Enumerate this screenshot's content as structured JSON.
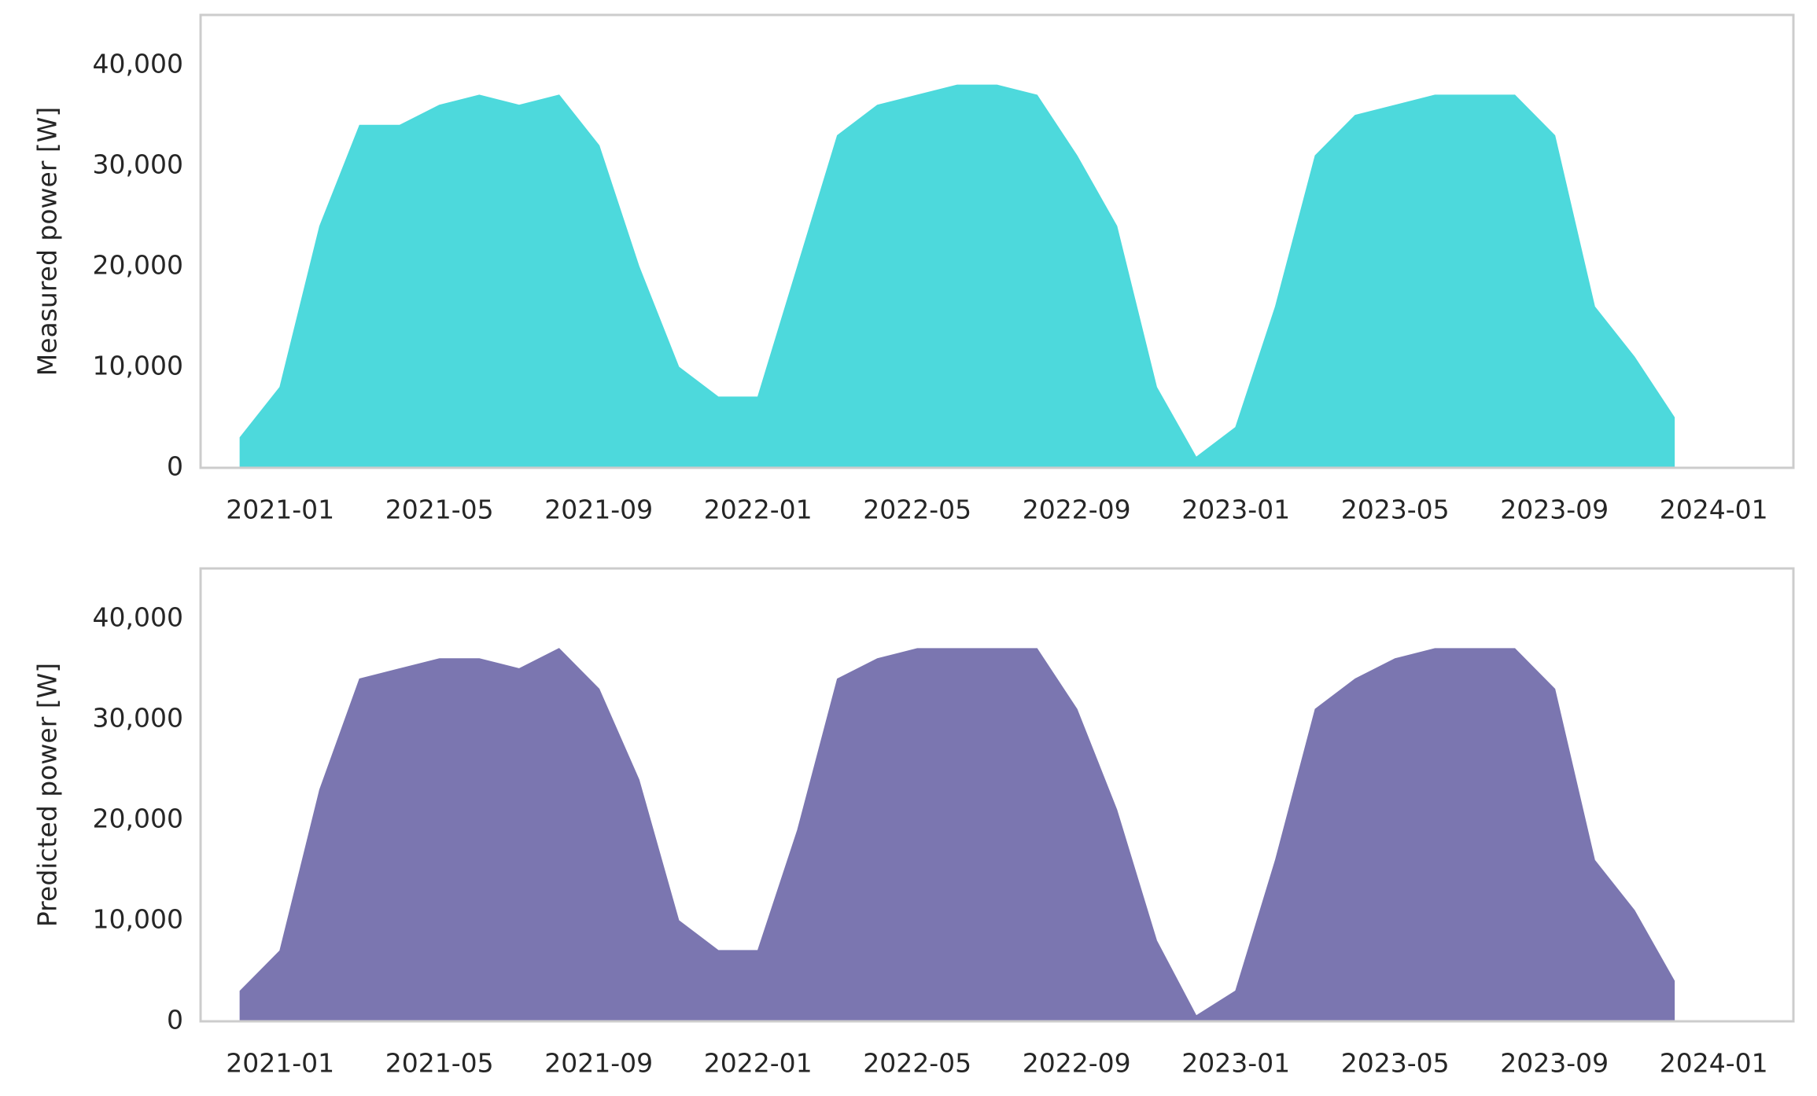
{
  "chart_data": [
    {
      "type": "area",
      "ylabel": "Measured power [W]",
      "color": "#4dd9dc",
      "x": [
        "2020-12",
        "2021-01",
        "2021-02",
        "2021-03",
        "2021-04",
        "2021-05",
        "2021-06",
        "2021-07",
        "2021-08",
        "2021-09",
        "2021-10",
        "2021-11",
        "2021-12",
        "2022-01",
        "2022-02",
        "2022-03",
        "2022-04",
        "2022-05",
        "2022-06",
        "2022-07",
        "2022-08",
        "2022-09",
        "2022-10",
        "2022-11",
        "2022-12",
        "2023-01",
        "2023-02",
        "2023-03",
        "2023-04",
        "2023-05",
        "2023-06",
        "2023-07",
        "2023-08",
        "2023-09",
        "2023-10",
        "2023-11",
        "2023-12"
      ],
      "values": [
        3000,
        8000,
        24000,
        34000,
        34000,
        36000,
        37000,
        36000,
        37000,
        32000,
        20000,
        10000,
        7000,
        7000,
        20000,
        33000,
        36000,
        37000,
        38000,
        38000,
        37000,
        31000,
        24000,
        8000,
        1000,
        4000,
        16000,
        31000,
        35000,
        36000,
        37000,
        37000,
        37000,
        33000,
        16000,
        11000,
        5000
      ],
      "xlim": [
        "2020-11",
        "2024-03"
      ],
      "xticks": [
        "2021-01",
        "2021-05",
        "2021-09",
        "2022-01",
        "2022-05",
        "2022-09",
        "2023-01",
        "2023-05",
        "2023-09",
        "2024-01"
      ],
      "ylim": [
        0,
        45000
      ],
      "yticks": [
        0,
        {
          "value": 10000,
          "label": "10,000"
        },
        {
          "value": 20000,
          "label": "20,000"
        },
        {
          "value": 30000,
          "label": "30,000"
        },
        {
          "value": 40000,
          "label": "40,000"
        }
      ],
      "grid": false
    },
    {
      "type": "area",
      "ylabel": "Predicted power [W]",
      "color": "#7b76b0",
      "x": [
        "2020-12",
        "2021-01",
        "2021-02",
        "2021-03",
        "2021-04",
        "2021-05",
        "2021-06",
        "2021-07",
        "2021-08",
        "2021-09",
        "2021-10",
        "2021-11",
        "2021-12",
        "2022-01",
        "2022-02",
        "2022-03",
        "2022-04",
        "2022-05",
        "2022-06",
        "2022-07",
        "2022-08",
        "2022-09",
        "2022-10",
        "2022-11",
        "2022-12",
        "2023-01",
        "2023-02",
        "2023-03",
        "2023-04",
        "2023-05",
        "2023-06",
        "2023-07",
        "2023-08",
        "2023-09",
        "2023-10",
        "2023-11",
        "2023-12"
      ],
      "values": [
        3000,
        7000,
        23000,
        34000,
        35000,
        36000,
        36000,
        35000,
        37000,
        33000,
        24000,
        10000,
        7000,
        7000,
        19000,
        34000,
        36000,
        37000,
        37000,
        37000,
        37000,
        31000,
        21000,
        8000,
        500,
        3000,
        16000,
        31000,
        34000,
        36000,
        37000,
        37000,
        37000,
        33000,
        16000,
        11000,
        4000
      ],
      "xlim": [
        "2020-11",
        "2024-03"
      ],
      "xticks": [
        "2021-01",
        "2021-05",
        "2021-09",
        "2022-01",
        "2022-05",
        "2022-09",
        "2023-01",
        "2023-05",
        "2023-09",
        "2024-01"
      ],
      "ylim": [
        0,
        45000
      ],
      "yticks": [
        0,
        {
          "value": 10000,
          "label": "10,000"
        },
        {
          "value": 20000,
          "label": "20,000"
        },
        {
          "value": 30000,
          "label": "30,000"
        },
        {
          "value": 40000,
          "label": "40,000"
        }
      ],
      "grid": false
    }
  ]
}
